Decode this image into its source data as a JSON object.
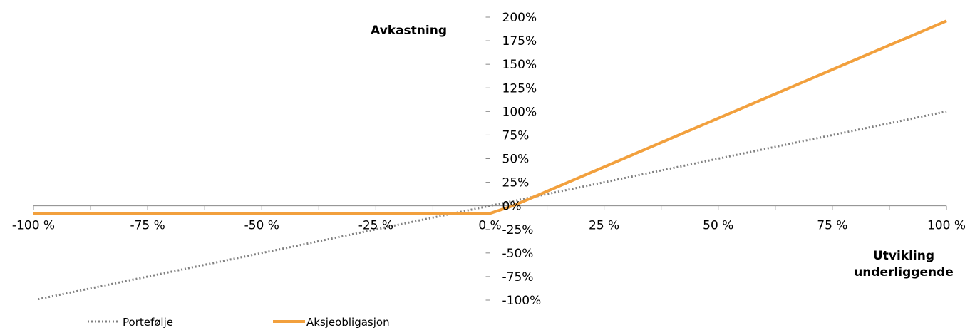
{
  "chart_data": {
    "type": "line",
    "ylabel": "Avkastning",
    "xlabel_lines": [
      "Utvikling",
      "underliggende"
    ],
    "x_ticks": [
      "-100 %",
      "-75 %",
      "-50 %",
      "-25 %",
      "0 %",
      "25 %",
      "50 %",
      "75 %",
      "100 %"
    ],
    "y_ticks": [
      "200%",
      "175%",
      "150%",
      "125%",
      "100%",
      "75%",
      "50%",
      "25%",
      "0%",
      "-25%",
      "-50%",
      "-75%",
      "-100%"
    ],
    "xlim": [
      -100,
      100
    ],
    "ylim": [
      -100,
      200
    ],
    "series": [
      {
        "name": "Portefølje",
        "style": "dotted",
        "color": "#808080",
        "points": [
          [
            -99,
            -99
          ],
          [
            100,
            100
          ]
        ]
      },
      {
        "name": "Aksjeobligasjon",
        "style": "solid",
        "color": "#F2A03D",
        "points": [
          [
            -100,
            -8
          ],
          [
            0,
            -8
          ],
          [
            5,
            0
          ],
          [
            100,
            196
          ]
        ]
      }
    ],
    "legend": [
      "Portefølje",
      "Aksjeobligasjon"
    ],
    "legend_position": "bottom-left"
  }
}
